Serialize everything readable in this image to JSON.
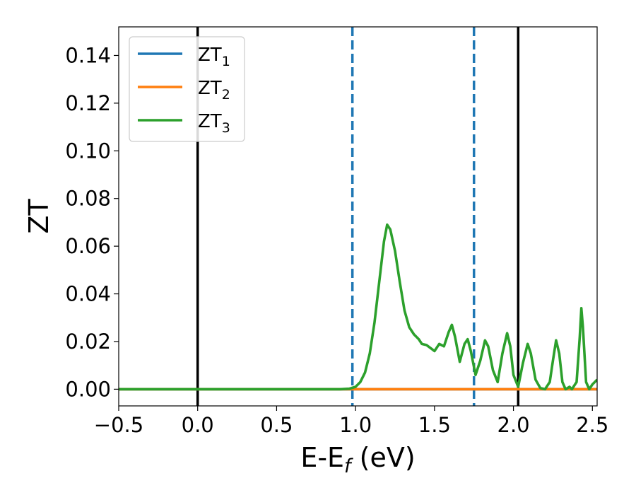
{
  "chart_data": {
    "type": "line",
    "xlabel": "E-E",
    "xlabel_sub": "f",
    "xlabel_unit": " (eV)",
    "ylabel": "ZT",
    "xlim": [
      -0.5,
      2.53
    ],
    "ylim": [
      -0.007,
      0.152
    ],
    "x_ticks": [
      -0.5,
      0.0,
      0.5,
      1.0,
      1.5,
      2.0,
      2.5
    ],
    "x_tick_labels": [
      "−0.5",
      "0.0",
      "0.5",
      "1.0",
      "1.5",
      "2.0",
      "2.5"
    ],
    "y_ticks": [
      0.0,
      0.02,
      0.04,
      0.06,
      0.08,
      0.1,
      0.12,
      0.14
    ],
    "y_tick_labels": [
      "0.00",
      "0.02",
      "0.04",
      "0.06",
      "0.08",
      "0.10",
      "0.12",
      "0.14"
    ],
    "grid": false,
    "legend_position": "top-left",
    "series": [
      {
        "name": "ZT",
        "subscript": "1",
        "color": "#1f77b4",
        "points": [
          [
            -0.5,
            0.0
          ],
          [
            2.53,
            0.0
          ]
        ]
      },
      {
        "name": "ZT",
        "subscript": "2",
        "color": "#ff7f0e",
        "points": [
          [
            -0.5,
            0.0
          ],
          [
            2.53,
            0.0
          ]
        ]
      },
      {
        "name": "ZT",
        "subscript": "3",
        "color": "#2ca02c",
        "points": [
          [
            -0.5,
            0.0
          ],
          [
            0.5,
            0.0
          ],
          [
            0.9,
            0.0
          ],
          [
            0.96,
            0.0002
          ],
          [
            1.0,
            0.001
          ],
          [
            1.03,
            0.003
          ],
          [
            1.06,
            0.007
          ],
          [
            1.09,
            0.015
          ],
          [
            1.12,
            0.028
          ],
          [
            1.15,
            0.045
          ],
          [
            1.18,
            0.062
          ],
          [
            1.2,
            0.069
          ],
          [
            1.22,
            0.067
          ],
          [
            1.25,
            0.058
          ],
          [
            1.28,
            0.045
          ],
          [
            1.31,
            0.033
          ],
          [
            1.34,
            0.026
          ],
          [
            1.37,
            0.023
          ],
          [
            1.4,
            0.021
          ],
          [
            1.42,
            0.019
          ],
          [
            1.45,
            0.0185
          ],
          [
            1.48,
            0.017
          ],
          [
            1.5,
            0.016
          ],
          [
            1.53,
            0.019
          ],
          [
            1.56,
            0.018
          ],
          [
            1.59,
            0.024
          ],
          [
            1.61,
            0.027
          ],
          [
            1.63,
            0.022
          ],
          [
            1.66,
            0.0115
          ],
          [
            1.69,
            0.019
          ],
          [
            1.71,
            0.021
          ],
          [
            1.73,
            0.016
          ],
          [
            1.76,
            0.006
          ],
          [
            1.79,
            0.012
          ],
          [
            1.82,
            0.0205
          ],
          [
            1.84,
            0.018
          ],
          [
            1.87,
            0.008
          ],
          [
            1.9,
            0.003
          ],
          [
            1.93,
            0.015
          ],
          [
            1.96,
            0.0235
          ],
          [
            1.98,
            0.018
          ],
          [
            2.0,
            0.006
          ],
          [
            2.03,
            0.001
          ],
          [
            2.06,
            0.011
          ],
          [
            2.09,
            0.019
          ],
          [
            2.11,
            0.015
          ],
          [
            2.14,
            0.004
          ],
          [
            2.17,
            0.0005
          ],
          [
            2.2,
            0.0
          ],
          [
            2.23,
            0.003
          ],
          [
            2.25,
            0.012
          ],
          [
            2.27,
            0.0205
          ],
          [
            2.29,
            0.015
          ],
          [
            2.31,
            0.003
          ],
          [
            2.33,
            0.0
          ],
          [
            2.355,
            0.001
          ],
          [
            2.37,
            0.0
          ],
          [
            2.4,
            0.003
          ],
          [
            2.42,
            0.022
          ],
          [
            2.43,
            0.034
          ],
          [
            2.44,
            0.026
          ],
          [
            2.46,
            0.003
          ],
          [
            2.48,
            0.0
          ],
          [
            2.5,
            0.002
          ],
          [
            2.53,
            0.004
          ]
        ]
      }
    ],
    "vertical_lines": [
      {
        "x": 0.0,
        "style": "solid",
        "color": "#000000"
      },
      {
        "x": 2.03,
        "style": "solid",
        "color": "#000000"
      },
      {
        "x": 0.98,
        "style": "dashed",
        "color": "#1f77b4"
      },
      {
        "x": 1.75,
        "style": "dashed",
        "color": "#1f77b4"
      }
    ]
  }
}
